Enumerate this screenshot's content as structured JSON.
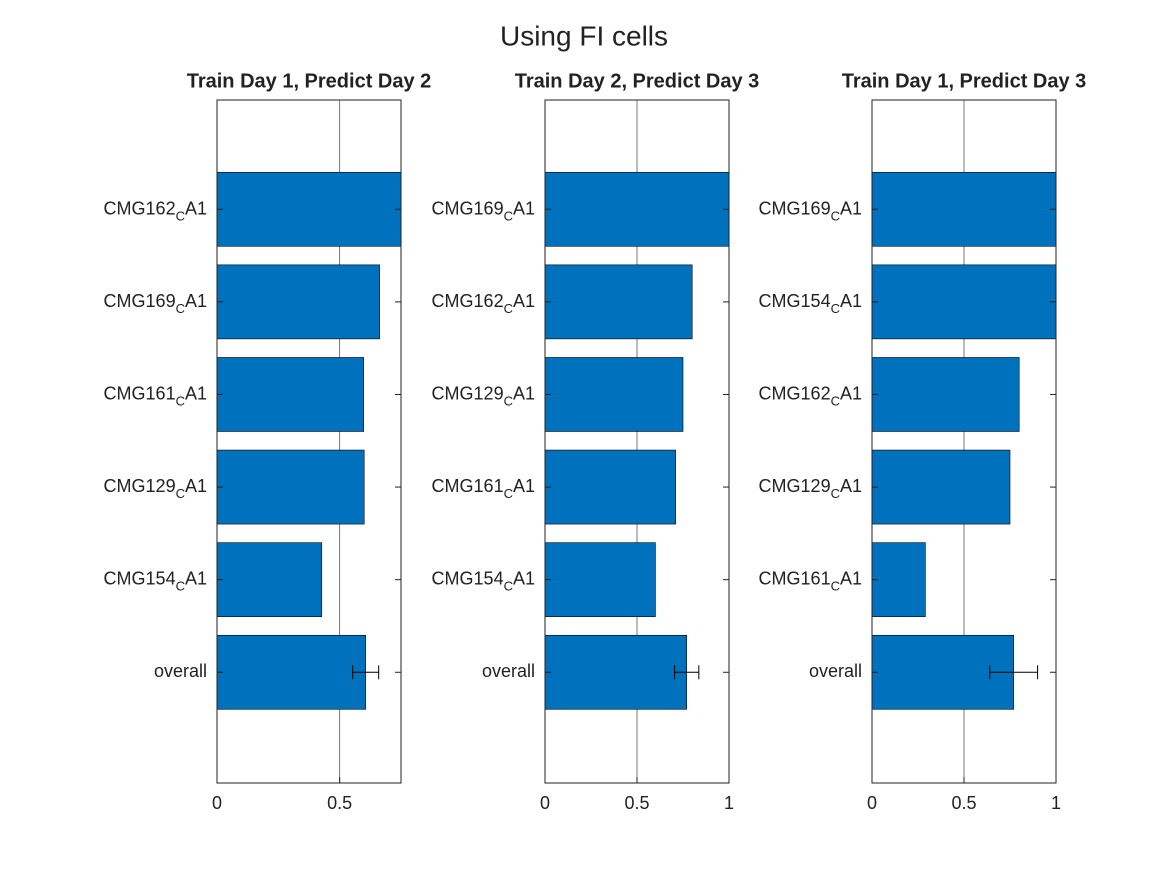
{
  "title": "Using FI cells",
  "chart_data": [
    {
      "type": "barh",
      "title": "Train Day 1, Predict Day 2",
      "categories": [
        "CMG162CA1",
        "CMG169CA1",
        "CMG161CA1",
        "CMG129CA1",
        "CMG154CA1",
        "overall"
      ],
      "values": [
        0.75,
        0.663,
        0.598,
        0.6,
        0.427,
        0.606
      ],
      "errors": [
        null,
        null,
        null,
        null,
        null,
        0.053
      ],
      "color": "#0072bd",
      "xlim": [
        0,
        0.75
      ],
      "xticks": [
        0,
        0.5
      ],
      "grid": true
    },
    {
      "type": "barh",
      "title": "Train Day 2, Predict Day 3",
      "categories": [
        "CMG169CA1",
        "CMG162CA1",
        "CMG129CA1",
        "CMG161CA1",
        "CMG154CA1",
        "overall"
      ],
      "values": [
        1,
        0.8,
        0.75,
        0.71,
        0.6,
        0.77
      ],
      "errors": [
        null,
        null,
        null,
        null,
        null,
        0.066
      ],
      "color": "#0072bd",
      "xlim": [
        0,
        1
      ],
      "xticks": [
        0,
        0.5,
        1
      ],
      "grid": true
    },
    {
      "type": "barh",
      "title": "Train Day 1, Predict Day 3",
      "categories": [
        "CMG169CA1",
        "CMG154CA1",
        "CMG162CA1",
        "CMG129CA1",
        "CMG161CA1",
        "overall"
      ],
      "values": [
        1,
        1,
        0.8,
        0.75,
        0.29,
        0.77
      ],
      "errors": [
        null,
        null,
        null,
        null,
        null,
        0.13
      ],
      "color": "#0072bd",
      "xlim": [
        0,
        1
      ],
      "xticks": [
        0,
        0.5,
        1
      ],
      "grid": true
    }
  ]
}
